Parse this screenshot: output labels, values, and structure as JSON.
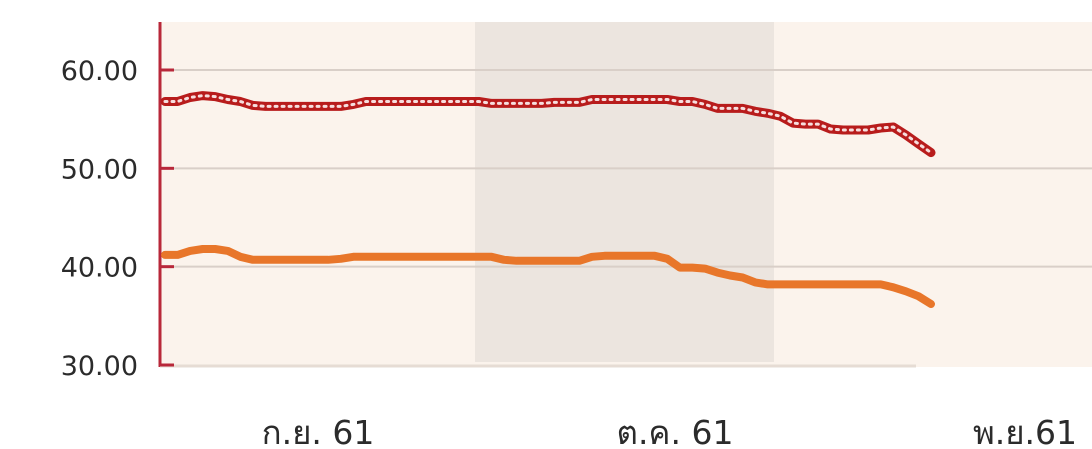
{
  "chart_data": {
    "type": "line",
    "title": "",
    "xlabel": "",
    "ylabel": "",
    "ylim": [
      30,
      60
    ],
    "yticks": [
      "60.00",
      "50.00",
      "40.00",
      "30.00"
    ],
    "ytick_values": [
      60,
      50,
      40,
      30
    ],
    "x_month_labels": [
      "ก.ย. 61",
      "ต.ค. 61",
      "พ.ย.61"
    ],
    "grid": true,
    "legend": "none",
    "highlighted_period": "ต.ค. 61",
    "series": [
      {
        "color": "#b81c1c",
        "style": "dotted-line",
        "values": [
          56.8,
          56.8,
          57.2,
          57.4,
          57.3,
          57.0,
          56.8,
          56.4,
          56.3,
          56.3,
          56.3,
          56.3,
          56.3,
          56.3,
          56.3,
          56.5,
          56.8,
          56.8,
          56.8,
          56.8,
          56.8,
          56.8,
          56.8,
          56.8,
          56.8,
          56.8,
          56.6,
          56.6,
          56.6,
          56.6,
          56.6,
          56.7,
          56.7,
          56.7,
          57.0,
          57.0,
          57.0,
          57.0,
          57.0,
          57.0,
          57.0,
          56.8,
          56.8,
          56.5,
          56.1,
          56.1,
          56.1,
          55.8,
          55.6,
          55.3,
          54.6,
          54.5,
          54.5,
          54.0,
          53.9,
          53.9,
          53.9,
          54.1,
          54.2,
          53.4,
          52.5,
          51.6
        ]
      },
      {
        "color": "#e8762a",
        "style": "solid",
        "values": [
          41.2,
          41.2,
          41.6,
          41.8,
          41.8,
          41.6,
          41.0,
          40.7,
          40.7,
          40.7,
          40.7,
          40.7,
          40.7,
          40.7,
          40.8,
          41.0,
          41.0,
          41.0,
          41.0,
          41.0,
          41.0,
          41.0,
          41.0,
          41.0,
          41.0,
          41.0,
          41.0,
          40.7,
          40.6,
          40.6,
          40.6,
          40.6,
          40.6,
          40.6,
          41.0,
          41.1,
          41.1,
          41.1,
          41.1,
          41.1,
          40.8,
          39.9,
          39.9,
          39.8,
          39.4,
          39.1,
          38.9,
          38.4,
          38.2,
          38.2,
          38.2,
          38.2,
          38.2,
          38.2,
          38.2,
          38.2,
          38.2,
          38.2,
          37.9,
          37.5,
          37.0,
          36.2
        ]
      }
    ]
  }
}
